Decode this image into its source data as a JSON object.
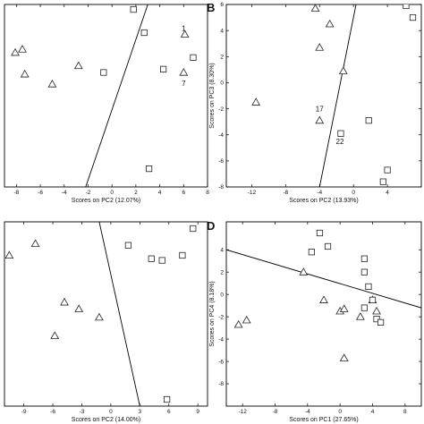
{
  "chart_data": [
    {
      "type": "scatter",
      "panel": "",
      "xlabel": "Scores on PC2 (12.07%)",
      "ylabel": "",
      "xlim": [
        -9,
        8
      ],
      "ylim": [
        -4.8,
        6.2
      ],
      "xticks": [
        -8,
        -6,
        -4,
        -2,
        0,
        2,
        4,
        6,
        8
      ],
      "yticks": [],
      "grid": false,
      "series": [
        {
          "marker": "triangle",
          "x": [
            -8.1,
            -7.5,
            -7.3,
            -5.0,
            -2.8,
            6.1,
            6.0
          ],
          "y": [
            3.3,
            3.5,
            2.0,
            1.4,
            2.5,
            4.4,
            2.1
          ]
        },
        {
          "marker": "square",
          "x": [
            -0.7,
            1.8,
            2.7,
            4.3,
            6.8,
            3.1
          ],
          "y": [
            2.1,
            5.9,
            4.5,
            2.3,
            3.0,
            -3.7
          ]
        }
      ],
      "boundary": {
        "x": [
          -2.2,
          3.0
        ],
        "y": [
          -4.8,
          6.2
        ]
      },
      "annotations": [
        {
          "text": "1",
          "x": 6.0,
          "y": 4.6
        },
        {
          "text": "7",
          "x": 6.0,
          "y": 1.3
        }
      ]
    },
    {
      "type": "scatter",
      "panel": "B",
      "xlabel": "Scores on PC2 (13.93%)",
      "ylabel": "Scores on PC3 (8.30%)",
      "xlim": [
        -15,
        8
      ],
      "ylim": [
        -8,
        6
      ],
      "xticks": [
        -12,
        -8,
        -4,
        0,
        4
      ],
      "yticks": [
        -8,
        -6,
        -4,
        -2,
        0,
        2,
        4,
        6
      ],
      "grid": false,
      "series": [
        {
          "marker": "triangle",
          "x": [
            -11.5,
            -4.5,
            -4.0,
            -2.8,
            -1.2,
            -4.0
          ],
          "y": [
            -1.5,
            5.7,
            2.7,
            4.5,
            0.9,
            -2.9
          ]
        },
        {
          "marker": "square",
          "x": [
            6.2,
            7.0,
            -1.5,
            1.8,
            4.0,
            3.5
          ],
          "y": [
            5.9,
            5.0,
            -3.9,
            -2.9,
            -6.7,
            -7.6
          ]
        }
      ],
      "boundary": {
        "x": [
          -4.0,
          0.3
        ],
        "y": [
          -8,
          6
        ]
      },
      "annotations": [
        {
          "text": "17",
          "x": -4.0,
          "y": -2.2
        },
        {
          "text": "22",
          "x": -1.6,
          "y": -4.7
        }
      ]
    },
    {
      "type": "scatter",
      "panel": "",
      "xlabel": "Scores on PC2 (14.00%)",
      "ylabel": "",
      "xlim": [
        -11,
        10
      ],
      "ylim": [
        -5.5,
        5.5
      ],
      "xticks": [
        -9,
        -6,
        -3,
        0,
        3,
        6,
        9
      ],
      "yticks": [],
      "grid": false,
      "series": [
        {
          "marker": "triangle",
          "x": [
            -10.5,
            -7.8,
            -4.8,
            -3.3,
            -1.2,
            -5.8
          ],
          "y": [
            3.5,
            4.2,
            0.7,
            0.3,
            -0.2,
            -1.3
          ]
        },
        {
          "marker": "square",
          "x": [
            1.8,
            4.2,
            5.3,
            7.4,
            8.5,
            5.8
          ],
          "y": [
            4.1,
            3.3,
            3.2,
            3.5,
            5.1,
            -5.1
          ]
        }
      ],
      "boundary": {
        "x": [
          -1.2,
          3.0
        ],
        "y": [
          5.5,
          -5.5
        ]
      },
      "annotations": []
    },
    {
      "type": "scatter",
      "panel": "D",
      "xlabel": "Scores on PC1 (27.65%)",
      "ylabel": "Scores on PC4 (8.18%)",
      "xlim": [
        -14,
        10
      ],
      "ylim": [
        -10,
        6.5
      ],
      "xticks": [
        -12,
        -8,
        -4,
        0,
        4,
        8
      ],
      "yticks": [
        -8,
        -6,
        -4,
        -2,
        0,
        2,
        4
      ],
      "grid": false,
      "series": [
        {
          "marker": "triangle",
          "x": [
            -12.5,
            -11.5,
            -4.5,
            -2.0,
            0.0,
            0.5,
            2.5,
            4.0,
            4.5,
            0.5
          ],
          "y": [
            -2.7,
            -2.3,
            2.0,
            -0.5,
            -1.5,
            -1.3,
            -2.0,
            -0.5,
            -1.5,
            -5.7
          ]
        },
        {
          "marker": "square",
          "x": [
            -2.5,
            -1.5,
            -3.5,
            3.0,
            3.0,
            3.5,
            4.0,
            3.0,
            4.5,
            5.0
          ],
          "y": [
            5.5,
            4.3,
            3.8,
            3.2,
            2.0,
            0.7,
            -0.5,
            -1.2,
            -2.2,
            -2.5
          ]
        }
      ],
      "boundary": {
        "x": [
          -14,
          10
        ],
        "y": [
          4.0,
          -1.2
        ]
      },
      "annotations": []
    }
  ]
}
